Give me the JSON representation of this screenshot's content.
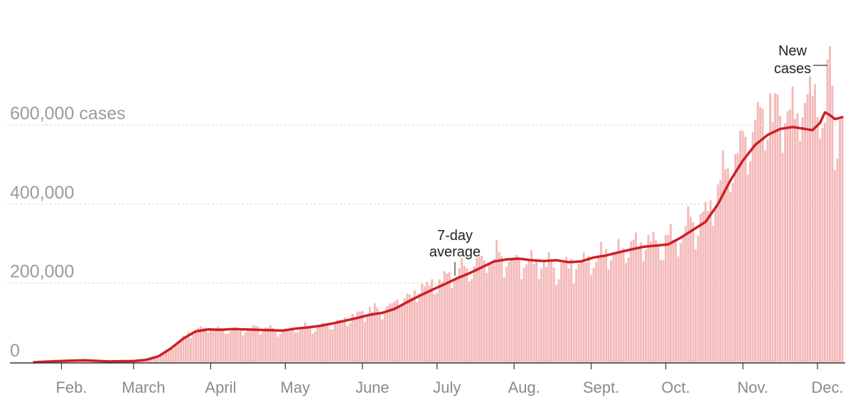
{
  "colors": {
    "bar": "#f4b9b9",
    "line": "#cc1f25",
    "grid": "#d6d6d6",
    "baseline": "#333333",
    "tick_text": "#9b9b9b",
    "annotation_text": "#222222"
  },
  "chart_data": {
    "type": "bar",
    "title": "",
    "xlabel": "",
    "ylabel": "",
    "ylim": [
      0,
      800000
    ],
    "y_ticks": [
      {
        "value": 0,
        "label": "0"
      },
      {
        "value": 200000,
        "label": "200,000"
      },
      {
        "value": 400000,
        "label": "400,000"
      },
      {
        "value": 600000,
        "label": "600,000 cases"
      }
    ],
    "x_ticks": [
      {
        "index": 11,
        "label": "Feb."
      },
      {
        "index": 40,
        "label": "March"
      },
      {
        "index": 71,
        "label": "April"
      },
      {
        "index": 101,
        "label": "May"
      },
      {
        "index": 132,
        "label": "June"
      },
      {
        "index": 162,
        "label": "July"
      },
      {
        "index": 193,
        "label": "Aug."
      },
      {
        "index": 224,
        "label": "Sept."
      },
      {
        "index": 254,
        "label": "Oct."
      },
      {
        "index": 285,
        "label": "Nov."
      },
      {
        "index": 315,
        "label": "Dec."
      }
    ],
    "grid": true,
    "series": [
      {
        "name": "New cases",
        "kind": "bar",
        "keypoints": [
          [
            0,
            0
          ],
          [
            10,
            3000
          ],
          [
            20,
            5000
          ],
          [
            30,
            2000
          ],
          [
            40,
            3000
          ],
          [
            50,
            12000
          ],
          [
            55,
            35000
          ],
          [
            60,
            65000
          ],
          [
            65,
            85000
          ],
          [
            70,
            90000
          ],
          [
            80,
            82000
          ],
          [
            90,
            88000
          ],
          [
            100,
            80000
          ],
          [
            110,
            90000
          ],
          [
            120,
            95000
          ],
          [
            125,
            110000
          ],
          [
            130,
            120000
          ],
          [
            135,
            135000
          ],
          [
            140,
            130000
          ],
          [
            145,
            150000
          ],
          [
            150,
            165000
          ],
          [
            155,
            185000
          ],
          [
            160,
            200000
          ],
          [
            165,
            215000
          ],
          [
            170,
            230000
          ],
          [
            175,
            240000
          ],
          [
            180,
            255000
          ],
          [
            185,
            275000
          ],
          [
            190,
            265000
          ],
          [
            195,
            255000
          ],
          [
            200,
            260000
          ],
          [
            205,
            250000
          ],
          [
            210,
            240000
          ],
          [
            215,
            245000
          ],
          [
            220,
            255000
          ],
          [
            225,
            265000
          ],
          [
            230,
            275000
          ],
          [
            235,
            285000
          ],
          [
            240,
            300000
          ],
          [
            245,
            310000
          ],
          [
            250,
            300000
          ],
          [
            255,
            305000
          ],
          [
            260,
            330000
          ],
          [
            265,
            355000
          ],
          [
            270,
            380000
          ],
          [
            275,
            450000
          ],
          [
            280,
            520000
          ],
          [
            285,
            560000
          ],
          [
            290,
            600000
          ],
          [
            295,
            640000
          ],
          [
            300,
            650000
          ],
          [
            305,
            630000
          ],
          [
            310,
            660000
          ],
          [
            315,
            700000
          ],
          [
            318,
            580000
          ],
          [
            320,
            770000
          ],
          [
            322,
            560000
          ],
          [
            325,
            630000
          ]
        ]
      },
      {
        "name": "7-day average",
        "kind": "line",
        "keypoints": [
          [
            0,
            0
          ],
          [
            10,
            3000
          ],
          [
            20,
            5000
          ],
          [
            30,
            2000
          ],
          [
            40,
            3000
          ],
          [
            45,
            6000
          ],
          [
            50,
            15000
          ],
          [
            55,
            35000
          ],
          [
            60,
            60000
          ],
          [
            65,
            78000
          ],
          [
            70,
            83000
          ],
          [
            75,
            82000
          ],
          [
            80,
            84000
          ],
          [
            90,
            82000
          ],
          [
            100,
            80000
          ],
          [
            105,
            85000
          ],
          [
            110,
            88000
          ],
          [
            115,
            92000
          ],
          [
            120,
            98000
          ],
          [
            125,
            105000
          ],
          [
            130,
            112000
          ],
          [
            135,
            120000
          ],
          [
            140,
            125000
          ],
          [
            145,
            135000
          ],
          [
            150,
            152000
          ],
          [
            155,
            168000
          ],
          [
            160,
            183000
          ],
          [
            165,
            197000
          ],
          [
            170,
            212000
          ],
          [
            175,
            225000
          ],
          [
            180,
            240000
          ],
          [
            185,
            255000
          ],
          [
            190,
            260000
          ],
          [
            195,
            262000
          ],
          [
            200,
            258000
          ],
          [
            205,
            256000
          ],
          [
            210,
            258000
          ],
          [
            215,
            253000
          ],
          [
            220,
            255000
          ],
          [
            225,
            265000
          ],
          [
            230,
            270000
          ],
          [
            235,
            278000
          ],
          [
            240,
            285000
          ],
          [
            245,
            292000
          ],
          [
            250,
            295000
          ],
          [
            255,
            298000
          ],
          [
            260,
            315000
          ],
          [
            265,
            335000
          ],
          [
            270,
            355000
          ],
          [
            275,
            400000
          ],
          [
            280,
            460000
          ],
          [
            285,
            510000
          ],
          [
            290,
            550000
          ],
          [
            295,
            575000
          ],
          [
            300,
            590000
          ],
          [
            305,
            595000
          ],
          [
            310,
            590000
          ],
          [
            313,
            587000
          ],
          [
            316,
            605000
          ],
          [
            318,
            632000
          ],
          [
            320,
            625000
          ],
          [
            322,
            615000
          ],
          [
            324,
            618000
          ],
          [
            325,
            620000
          ]
        ]
      }
    ],
    "annotations": [
      {
        "lines": [
          "7-day",
          "average"
        ]
      },
      {
        "lines": [
          "New",
          "cases"
        ]
      }
    ]
  }
}
